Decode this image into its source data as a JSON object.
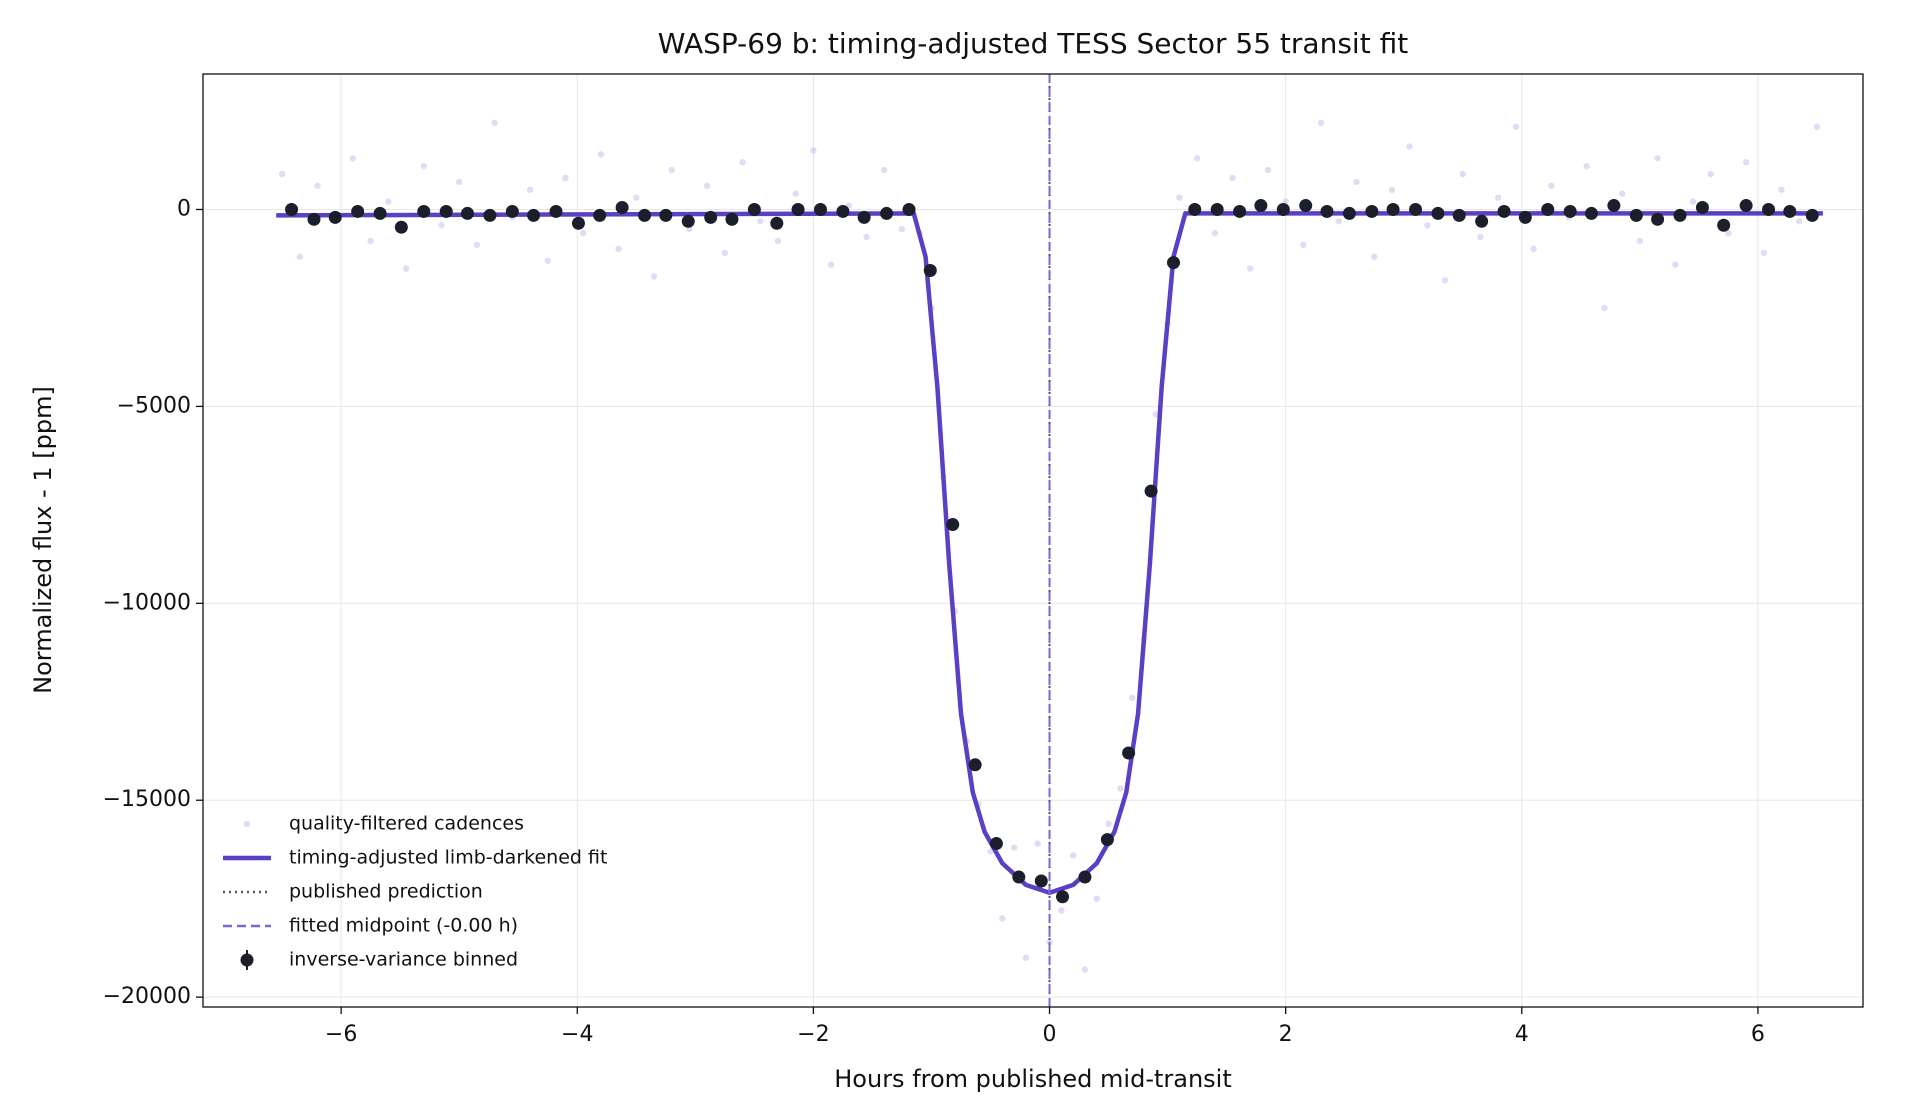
{
  "chart_data": {
    "type": "scatter",
    "title": "WASP-69 b: timing-adjusted TESS Sector 55 transit fit",
    "xlabel": "Hours from published mid-transit",
    "ylabel": "Normalized flux - 1 [ppm]",
    "xlim": [
      -7.17,
      6.89
    ],
    "ylim": [
      -20250,
      3440
    ],
    "xticks": [
      {
        "value": -6,
        "label": "−6"
      },
      {
        "value": -4,
        "label": "−4"
      },
      {
        "value": -2,
        "label": "−2"
      },
      0,
      2,
      4,
      6
    ],
    "yticks": [
      {
        "value": -20000,
        "label": "−20000"
      },
      {
        "value": -15000,
        "label": "−15000"
      },
      {
        "value": -10000,
        "label": "−10000"
      },
      {
        "value": -5000,
        "label": "−5000"
      },
      0
    ],
    "grid": true,
    "legend": "lower left",
    "series": [
      {
        "name": "quality-filtered cadences",
        "style": "points",
        "color": "#a89be0",
        "x": [
          -6.5,
          -6.35,
          -6.2,
          -6.05,
          -5.9,
          -5.75,
          -5.6,
          -5.45,
          -5.3,
          -5.15,
          -5.0,
          -4.85,
          -4.7,
          -4.55,
          -4.4,
          -4.25,
          -4.1,
          -3.95,
          -3.8,
          -3.65,
          -3.5,
          -3.35,
          -3.2,
          -3.05,
          -2.9,
          -2.75,
          -2.6,
          -2.45,
          -2.3,
          -2.15,
          -2.0,
          -1.85,
          -1.7,
          -1.55,
          -1.4,
          -1.25,
          -1.1,
          -1.0,
          -0.9,
          -0.8,
          -0.7,
          -0.6,
          -0.5,
          -0.4,
          -0.3,
          -0.2,
          -0.1,
          0.0,
          0.1,
          0.2,
          0.3,
          0.4,
          0.5,
          0.6,
          0.7,
          0.8,
          0.9,
          1.0,
          1.1,
          1.25,
          1.4,
          1.55,
          1.7,
          1.85,
          2.0,
          2.15,
          2.3,
          2.45,
          2.6,
          2.75,
          2.9,
          3.05,
          3.2,
          3.35,
          3.5,
          3.65,
          3.8,
          3.95,
          4.1,
          4.25,
          4.4,
          4.55,
          4.7,
          4.85,
          5.0,
          5.15,
          5.3,
          5.45,
          5.6,
          5.75,
          5.9,
          6.05,
          6.2,
          6.35,
          6.5
        ],
        "values": [
          900,
          -1200,
          600,
          -300,
          1300,
          -800,
          200,
          -1500,
          1100,
          -400,
          700,
          -900,
          2200,
          -200,
          500,
          -1300,
          800,
          -600,
          1400,
          -1000,
          300,
          -1700,
          1000,
          -500,
          600,
          -1100,
          1200,
          -300,
          -800,
          400,
          1500,
          -1400,
          100,
          -700,
          1000,
          -500,
          -600,
          -2500,
          -6800,
          -10200,
          -13500,
          -15100,
          -16300,
          -18000,
          -16200,
          -19000,
          -16100,
          -18600,
          -17800,
          -16400,
          -19300,
          -17500,
          -15600,
          -14700,
          -12400,
          -10900,
          -5200,
          -2900,
          300,
          1300,
          -600,
          800,
          -1500,
          1000,
          200,
          -900,
          2200,
          -300,
          700,
          -1200,
          500,
          1600,
          -400,
          -1800,
          900,
          -700,
          300,
          2100,
          -1000,
          600,
          -200,
          1100,
          -2500,
          400,
          -800,
          1300,
          -1400,
          200,
          900,
          -600,
          1200,
          -1100,
          500,
          -300,
          2100
        ]
      },
      {
        "name": "timing-adjusted limb-darkened fit",
        "style": "line",
        "color": "#5b3fc4",
        "x": [
          -6.55,
          -1.15,
          -1.05,
          -0.95,
          -0.85,
          -0.75,
          -0.65,
          -0.55,
          -0.4,
          -0.2,
          0,
          0.2,
          0.4,
          0.55,
          0.65,
          0.75,
          0.85,
          0.95,
          1.05,
          1.15,
          6.55
        ],
        "values": [
          -150,
          -100,
          -1200,
          -4500,
          -9000,
          -12800,
          -14800,
          -15800,
          -16600,
          -17150,
          -17350,
          -17150,
          -16600,
          -15800,
          -14800,
          -12800,
          -9000,
          -4500,
          -1200,
          -100,
          -100
        ]
      },
      {
        "name": "inverse-variance binned",
        "style": "points",
        "color": "#1a1f2b",
        "x": [
          -6.42,
          -6.23,
          -6.05,
          -5.86,
          -5.67,
          -5.49,
          -5.3,
          -5.11,
          -4.93,
          -4.74,
          -4.55,
          -4.37,
          -4.18,
          -3.99,
          -3.81,
          -3.62,
          -3.43,
          -3.25,
          -3.06,
          -2.87,
          -2.69,
          -2.5,
          -2.31,
          -2.13,
          -1.94,
          -1.75,
          -1.57,
          -1.38,
          -1.19,
          -1.01,
          -0.82,
          -0.63,
          -0.45,
          -0.26,
          -0.07,
          0.11,
          0.3,
          0.49,
          0.67,
          0.86,
          1.05,
          1.23,
          1.42,
          1.61,
          1.79,
          1.98,
          2.17,
          2.35,
          2.54,
          2.73,
          2.91,
          3.1,
          3.29,
          3.47,
          3.66,
          3.85,
          4.03,
          4.22,
          4.41,
          4.59,
          4.78,
          4.97,
          5.15,
          5.34,
          5.53,
          5.71,
          5.9,
          6.09,
          6.27,
          6.46
        ],
        "values": [
          0,
          -250,
          -200,
          -50,
          -100,
          -450,
          -50,
          -50,
          -100,
          -150,
          -50,
          -150,
          -50,
          -350,
          -150,
          50,
          -150,
          -150,
          -300,
          -200,
          -250,
          0,
          -350,
          0,
          0,
          -50,
          -200,
          -100,
          0,
          -1550,
          -8000,
          -14100,
          -16100,
          -16950,
          -17050,
          -17450,
          -16950,
          -16000,
          -13800,
          -7150,
          -1350,
          0,
          0,
          -50,
          100,
          0,
          100,
          -50,
          -100,
          -50,
          0,
          0,
          -100,
          -150,
          -300,
          -50,
          -200,
          0,
          -50,
          -100,
          100,
          -150,
          -250,
          -150,
          50,
          -400,
          100,
          0,
          -50,
          -150
        ]
      }
    ],
    "vlines": [
      {
        "name": "published prediction",
        "x": 0,
        "color": "#4a5568",
        "dash": "dotted"
      },
      {
        "name": "fitted midpoint (-0.00 h)",
        "x": 0,
        "color": "#7b6ad6",
        "dash": "dashed"
      }
    ]
  }
}
